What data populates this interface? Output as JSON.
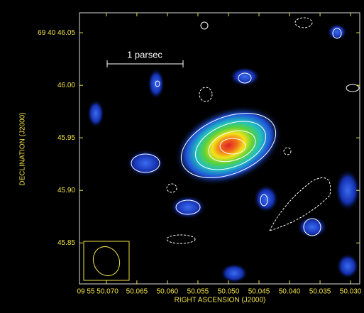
{
  "chart_data": {
    "type": "contour",
    "x_label": "RIGHT ASCENSION (J2000)",
    "y_label": "DECLINATION (J2000)",
    "scale_bar_label": "1 parsec",
    "xlim": [
      50.0744,
      50.0285
    ],
    "ylim": [
      45.811,
      46.069
    ],
    "xticks": [
      {
        "value": 50.07,
        "label": "09 55 50.070"
      },
      50.065,
      {
        "value": 50.06,
        "label": "50.060"
      },
      50.055,
      {
        "value": 50.05,
        "label": "50.050"
      },
      50.045,
      {
        "value": 50.04,
        "label": "50.040"
      },
      50.035,
      {
        "value": 50.03,
        "label": "50.030"
      }
    ],
    "yticks": [
      45.85,
      {
        "value": 45.9,
        "label": "45.90"
      },
      45.95,
      {
        "value": 46.0,
        "label": "46.00"
      },
      {
        "value": 46.05,
        "label": "69 40 46.05"
      }
    ]
  }
}
